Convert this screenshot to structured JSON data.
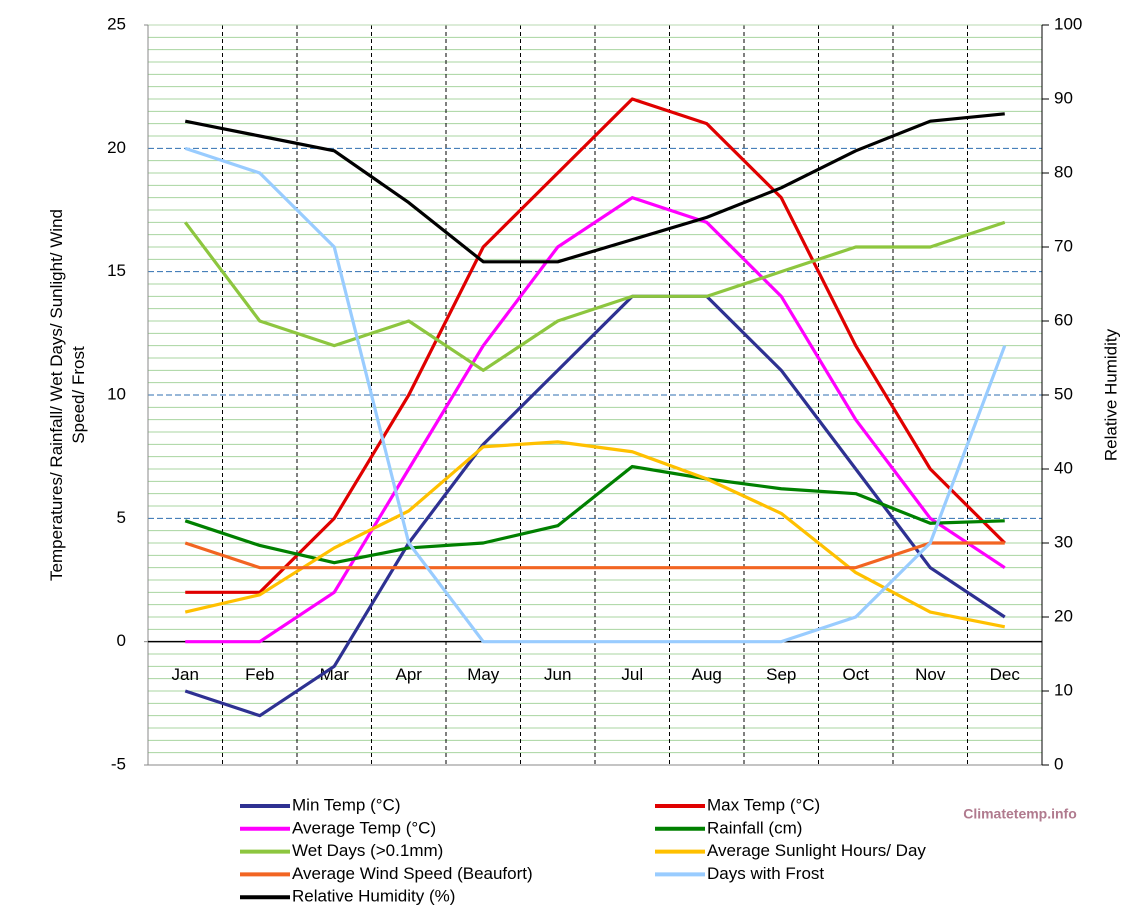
{
  "chart_data": {
    "type": "line",
    "categories": [
      "Jan",
      "Feb",
      "Mar",
      "Apr",
      "May",
      "Jun",
      "Jul",
      "Aug",
      "Sep",
      "Oct",
      "Nov",
      "Dec"
    ],
    "ylabel": [
      "Temperatures/ Rainfall/ Wet Days/ Sunlight/ Wind",
      "Speed/ Frost"
    ],
    "y2label": "Relative Humidity",
    "watermark": "Climatetemp.info",
    "ylim": [
      -5,
      25
    ],
    "yticks": [
      -5,
      0,
      5,
      10,
      15,
      20,
      25
    ],
    "y2lim": [
      0,
      100
    ],
    "y2ticks": [
      0,
      10,
      20,
      30,
      40,
      50,
      60,
      70,
      80,
      90,
      100
    ],
    "grid": true,
    "series": [
      {
        "name": "Min Temp (°C)",
        "color": "#2e3192",
        "values": [
          -2,
          -3,
          -1,
          4,
          8,
          11,
          14,
          14,
          11,
          7,
          3,
          1
        ]
      },
      {
        "name": "Max Temp (°C)",
        "color": "#e00000",
        "values": [
          2,
          2,
          5,
          10,
          16,
          19,
          22,
          21,
          18,
          12,
          7,
          4
        ]
      },
      {
        "name": "Average Temp (°C)",
        "color": "#ff00ff",
        "values": [
          0,
          0,
          2,
          7,
          12,
          16,
          18,
          17,
          14,
          9,
          5,
          3
        ]
      },
      {
        "name": "Rainfall (cm)",
        "color": "#008000",
        "values": [
          4.9,
          3.9,
          3.2,
          3.8,
          4.0,
          4.7,
          7.1,
          6.6,
          6.2,
          6.0,
          4.8,
          4.9
        ]
      },
      {
        "name": "Wet Days (>0.1mm)",
        "color": "#8dc63f",
        "values": [
          17,
          13,
          12,
          13,
          11,
          13,
          14,
          14,
          15,
          16,
          16,
          17
        ]
      },
      {
        "name": "Average Sunlight Hours/ Day",
        "color": "#ffc000",
        "values": [
          1.2,
          1.9,
          3.8,
          5.3,
          7.9,
          8.1,
          7.7,
          6.6,
          5.2,
          2.8,
          1.2,
          0.6
        ]
      },
      {
        "name": "Average Wind Speed (Beaufort)",
        "color": "#f26522",
        "values": [
          4,
          3,
          3,
          3,
          3,
          3,
          3,
          3,
          3,
          3,
          4,
          4
        ]
      },
      {
        "name": "Days with Frost",
        "color": "#99ccff",
        "values": [
          20,
          19,
          16,
          4,
          0,
          0,
          0,
          0,
          0,
          1,
          4,
          12
        ]
      },
      {
        "name": "Relative Humidity (%)",
        "color": "#000000",
        "axis": "y2",
        "values": [
          87,
          85,
          83,
          76,
          68,
          68,
          71,
          74,
          78,
          83,
          87,
          88
        ]
      }
    ]
  }
}
